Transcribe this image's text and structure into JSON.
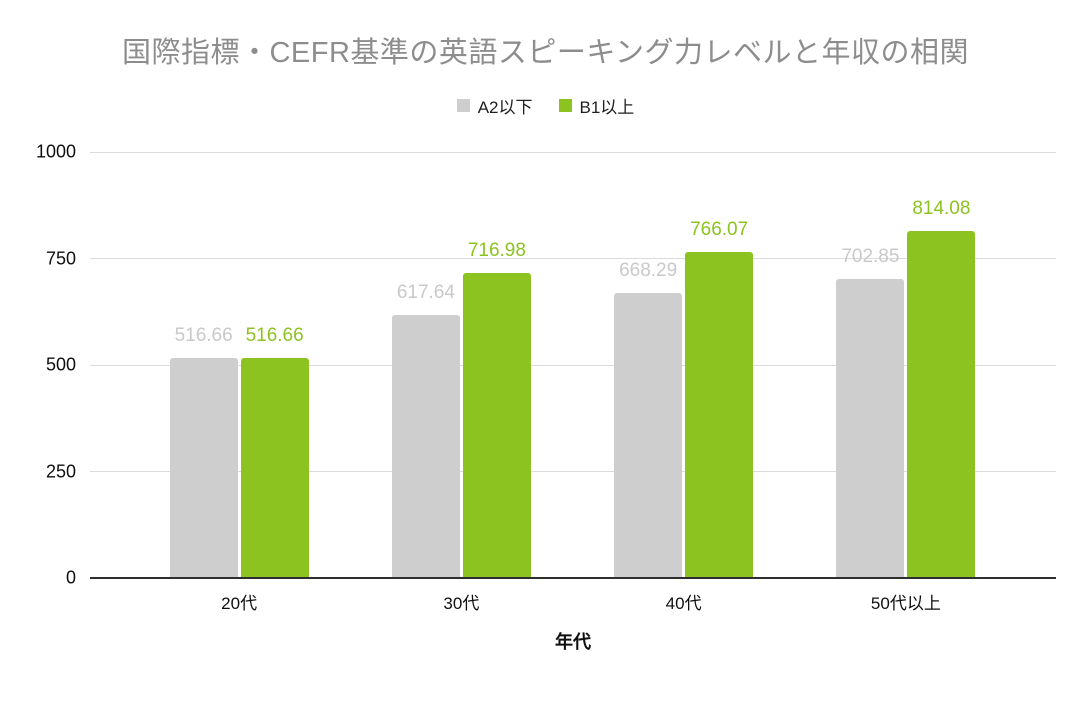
{
  "chart_data": {
    "type": "bar",
    "title": "国際指標・CEFR基準の英語スピーキング力レベルと年収の相関",
    "categories": [
      "20代",
      "30代",
      "40代",
      "50代以上"
    ],
    "series": [
      {
        "name": "A2以下",
        "color": "#cecece",
        "label_color": "#c9c9c9",
        "values": [
          516.66,
          617.64,
          668.29,
          702.85
        ]
      },
      {
        "name": "B1以上",
        "color": "#8cc320",
        "label_color": "#8cc320",
        "values": [
          516.66,
          716.98,
          766.07,
          814.08
        ]
      }
    ],
    "xlabel": "年代",
    "ylabel": "",
    "ylim": [
      0,
      1000
    ],
    "yticks": [
      0,
      250,
      500,
      750,
      1000
    ],
    "grid": true,
    "legend_position": "top",
    "background": "#ffffff",
    "colors": {
      "title_text": "#8d8d8d",
      "gridline": "#dadada",
      "axis_line": "#2e2e2e",
      "tick_text": "#0f0f0f"
    }
  }
}
